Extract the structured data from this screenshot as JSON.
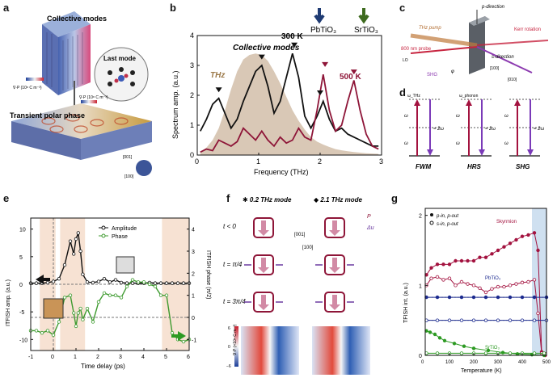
{
  "panels": {
    "a": {
      "label": "a",
      "collective_modes": "Collective modes",
      "last_mode": "Last mode",
      "transient_polar_phase": "Transient polar phase",
      "colorbar_top": "∇·P (10⁸ C m⁻³)",
      "colorbar_mid": "∇·P (10⁸ C m⁻³)",
      "axis_001": "[001]",
      "axis_100": "[100]"
    },
    "b": {
      "label": "b",
      "top_labels": [
        "PbTiO₃",
        "SrTiO₃"
      ],
      "top_label_colors": [
        "#1f3b73",
        "#3e6b1f"
      ],
      "annotations": {
        "collective": "Collective modes",
        "thz": "THz",
        "t300": "300 K",
        "t500": "500 K"
      }
    },
    "c": {
      "label": "c",
      "labels": [
        "p-direction",
        "THz pump",
        "Kerr rotation",
        "800 nm probe",
        "LO",
        "s-direction",
        "[100]",
        "[010]",
        "SHG",
        "φ"
      ]
    },
    "d": {
      "label": "d",
      "groups": [
        {
          "name": "FWM",
          "top": "ω_THz",
          "mid": "ω",
          "mid2": "ω",
          "right": "≈ 2ω"
        },
        {
          "name": "HRS",
          "top": "ω_phonon",
          "mid": "ω",
          "mid2": "ω",
          "right": "≈ 2ω"
        },
        {
          "name": "SHG",
          "top": "",
          "mid": "ω",
          "mid2": "ω",
          "right": "= 2ω"
        }
      ]
    },
    "e": {
      "label": "e",
      "legend": [
        "Amplitude",
        "Phase"
      ],
      "xlabel": "Time delay (ps)",
      "ylabel_left": "ITFISH amp. (a.u.)",
      "ylabel_right": "ITFISH phase (π/2)"
    },
    "f": {
      "label": "f",
      "mode1": "✱ 0.2 THz mode",
      "mode2": "◆ 2.1 THz mode",
      "rows": [
        "t < 0",
        "t = π/4",
        "t = 3π/4"
      ],
      "legend": [
        "P",
        "Δu"
      ],
      "axes": [
        "[001]",
        "[100]"
      ],
      "colorbar_label": "∇·P (×10⁸ C m⁻³)",
      "colorbar_ticks": [
        "6",
        "0",
        "−6"
      ]
    },
    "g": {
      "label": "g",
      "legend": [
        "p-in, p-out",
        "s-in, p-out"
      ],
      "series_labels": [
        "Skyrmion",
        "PbTiO₃",
        "SrTiO₃"
      ],
      "series_colors": [
        "#a3123f",
        "#1c2b8f",
        "#2d9a23"
      ],
      "xlabel": "Temperature (K)",
      "ylabel": "TFISH int. (a.u.)"
    }
  },
  "chart_data": [
    {
      "id": "b",
      "type": "line",
      "title": "",
      "xlabel": "Frequency (THz)",
      "ylabel": "Spectrum amp. (a.u.)",
      "xlim": [
        0,
        3
      ],
      "ylim": [
        0,
        4
      ],
      "xticks": [
        "0",
        "1",
        "2",
        "3"
      ],
      "yticks": [
        "0",
        "1",
        "2",
        "3",
        "4"
      ],
      "x": [
        0.05,
        0.15,
        0.25,
        0.35,
        0.45,
        0.55,
        0.65,
        0.75,
        0.85,
        0.95,
        1.05,
        1.15,
        1.25,
        1.35,
        1.45,
        1.55,
        1.65,
        1.75,
        1.85,
        1.95,
        2.05,
        2.15,
        2.25,
        2.35,
        2.45,
        2.55,
        2.65,
        2.75,
        2.85,
        2.95
      ],
      "series": [
        {
          "name": "THz",
          "color": "#d9c8b6",
          "values": [
            0.1,
            0.25,
            0.5,
            0.9,
            1.5,
            2.2,
            2.8,
            3.2,
            3.35,
            3.4,
            3.35,
            3.15,
            2.8,
            2.4,
            1.95,
            1.5,
            1.15,
            0.85,
            0.6,
            0.45,
            0.35,
            0.27,
            0.2,
            0.16,
            0.13,
            0.1,
            0.08,
            0.06,
            0.05,
            0.04
          ]
        },
        {
          "name": "300 K",
          "color": "#111111",
          "values": [
            0.8,
            1.2,
            1.7,
            1.9,
            1.4,
            0.9,
            1.2,
            1.8,
            2.3,
            2.8,
            3.0,
            2.3,
            1.4,
            1.8,
            2.6,
            3.4,
            2.6,
            1.3,
            0.9,
            1.3,
            1.8,
            1.2,
            0.8,
            0.9,
            0.7,
            0.6,
            0.5,
            0.4,
            0.3,
            0.3
          ]
        },
        {
          "name": "500 K",
          "color": "#8e1538",
          "values": [
            0.1,
            0.2,
            0.15,
            0.5,
            0.4,
            0.3,
            0.45,
            0.9,
            0.7,
            0.5,
            0.8,
            0.5,
            0.3,
            0.6,
            0.4,
            0.5,
            0.9,
            0.6,
            0.5,
            1.5,
            2.7,
            1.5,
            0.8,
            1.0,
            1.8,
            2.5,
            1.5,
            0.7,
            0.3,
            0.2
          ]
        }
      ],
      "markers": [
        {
          "x": 0.35,
          "y": 2.1,
          "color": "#111111"
        },
        {
          "x": 1.05,
          "y": 3.2,
          "color": "#111111"
        },
        {
          "x": 1.58,
          "y": 3.6,
          "color": "#111111"
        },
        {
          "x": 2.0,
          "y": 2.0,
          "color": "#111111"
        },
        {
          "x": 2.08,
          "y": 2.95,
          "color": "#8e1538"
        },
        {
          "x": 2.55,
          "y": 2.7,
          "color": "#8e1538"
        }
      ]
    },
    {
      "id": "e",
      "type": "line",
      "xlabel": "Time delay (ps)",
      "ylabel": "ITFISH amp. (a.u.)",
      "y2label": "ITFISH phase (π/2)",
      "xlim": [
        -1,
        6
      ],
      "ylim": [
        -12,
        12
      ],
      "y2lim": [
        -1.5,
        4.5
      ],
      "xticks": [
        "-1",
        "0",
        "1",
        "2",
        "3",
        "4",
        "5",
        "6"
      ],
      "yticks": [
        "-10",
        "-5",
        "0",
        "5",
        "10"
      ],
      "y2ticks": [
        "-1",
        "0",
        "1",
        "2",
        "3",
        "4"
      ],
      "shaded_intervals": [
        [
          -0.6,
          0.1
        ],
        [
          0.3,
          1.4
        ],
        [
          4.8,
          6.0
        ]
      ],
      "x": [
        -1,
        -0.75,
        -0.5,
        -0.25,
        0,
        0.25,
        0.5,
        0.75,
        0.9,
        1.0,
        1.1,
        1.2,
        1.3,
        1.5,
        1.75,
        2.0,
        2.25,
        2.5,
        2.75,
        3.0,
        3.25,
        3.5,
        3.75,
        4.0,
        4.25,
        4.5,
        4.75,
        5.0,
        5.25,
        5.5,
        5.75,
        6.0
      ],
      "series": [
        {
          "name": "Amplitude",
          "axis": "left",
          "color": "#111111",
          "values": [
            0.2,
            0.2,
            0.2,
            0.3,
            0.5,
            1.0,
            3.5,
            7.8,
            5.5,
            8.2,
            9.3,
            6.0,
            1.8,
            0.4,
            0.3,
            0.5,
            1.0,
            0.4,
            0.8,
            0.3,
            0.2,
            0.2,
            0.2,
            0.2,
            0.3,
            0.2,
            0.2,
            0.2,
            0.2,
            0.2,
            0.2,
            0.2
          ]
        },
        {
          "name": "Phase",
          "axis": "right",
          "color": "#3d9a2e",
          "values": [
            -0.6,
            -0.6,
            -0.7,
            -0.6,
            -0.8,
            -0.2,
            0.9,
            1.0,
            0.2,
            -0.4,
            0.2,
            0.4,
            -0.1,
            0.4,
            -0.2,
            0.7,
            1.1,
            1.0,
            1.0,
            0.9,
            1.4,
            1.7,
            1.6,
            1.6,
            1.5,
            1.4,
            1.0,
            1.0,
            -0.7,
            -1.0,
            -1.1,
            -1.0
          ]
        }
      ]
    },
    {
      "id": "g",
      "type": "line",
      "xlabel": "Temperature (K)",
      "ylabel": "TFISH int. (a.u.)",
      "xlim": [
        0,
        500
      ],
      "ylim": [
        0,
        2.1
      ],
      "xticks": [
        "0",
        "100",
        "200",
        "300",
        "400",
        "500"
      ],
      "yticks": [
        "0",
        "1",
        "2"
      ],
      "shaded_interval": [
        440,
        500
      ],
      "series": [
        {
          "name": "Skyrmion p-in, p-out",
          "color": "#a3123f",
          "filled": true,
          "x": [
            5,
            25,
            50,
            75,
            100,
            125,
            150,
            175,
            200,
            225,
            250,
            275,
            300,
            325,
            350,
            375,
            400,
            425,
            450,
            465,
            480,
            495
          ],
          "values": [
            1.15,
            1.25,
            1.3,
            1.3,
            1.3,
            1.35,
            1.35,
            1.35,
            1.35,
            1.4,
            1.4,
            1.45,
            1.5,
            1.55,
            1.6,
            1.65,
            1.7,
            1.72,
            1.75,
            1.5,
            0.05,
            0.0
          ]
        },
        {
          "name": "Skyrmion s-in, p-out",
          "color": "#a3123f",
          "filled": false,
          "x": [
            5,
            25,
            50,
            75,
            100,
            125,
            150,
            175,
            200,
            225,
            250,
            275,
            300,
            325,
            350,
            375,
            400,
            425,
            450,
            465,
            480,
            495
          ],
          "values": [
            1.0,
            1.1,
            1.12,
            1.08,
            1.1,
            1.0,
            1.05,
            1.02,
            1.0,
            0.96,
            0.9,
            0.95,
            0.98,
            0.98,
            1.0,
            1.02,
            1.04,
            1.05,
            1.08,
            0.6,
            0.03,
            0.02
          ]
        },
        {
          "name": "PbTiO₃ p-in, p-out",
          "color": "#1c2b8f",
          "filled": true,
          "x": [
            5,
            50,
            100,
            150,
            200,
            250,
            300,
            350,
            400,
            450,
            500
          ],
          "values": [
            0.83,
            0.83,
            0.83,
            0.83,
            0.83,
            0.83,
            0.83,
            0.83,
            0.83,
            0.83,
            0.83
          ]
        },
        {
          "name": "PbTiO₃ s-in, p-out",
          "color": "#1c2b8f",
          "filled": false,
          "x": [
            5,
            50,
            100,
            150,
            200,
            250,
            300,
            350,
            400,
            450,
            500
          ],
          "values": [
            0.5,
            0.5,
            0.5,
            0.5,
            0.5,
            0.5,
            0.5,
            0.5,
            0.5,
            0.5,
            0.5
          ]
        },
        {
          "name": "SrTiO₃ p-in, p-out",
          "color": "#2d9a23",
          "filled": true,
          "x": [
            5,
            20,
            40,
            60,
            80,
            120,
            160,
            200,
            260,
            320,
            380,
            440,
            490
          ],
          "values": [
            0.35,
            0.33,
            0.3,
            0.25,
            0.21,
            0.17,
            0.13,
            0.1,
            0.07,
            0.04,
            0.02,
            0.01,
            0.0
          ]
        },
        {
          "name": "SrTiO₃ s-in, p-out",
          "color": "#2d9a23",
          "filled": false,
          "x": [
            5,
            50,
            100,
            150,
            200,
            250,
            300,
            350,
            400,
            450,
            490
          ],
          "values": [
            0.03,
            0.03,
            0.03,
            0.03,
            0.03,
            0.03,
            0.03,
            0.03,
            0.03,
            0.03,
            0.03
          ]
        }
      ]
    }
  ]
}
